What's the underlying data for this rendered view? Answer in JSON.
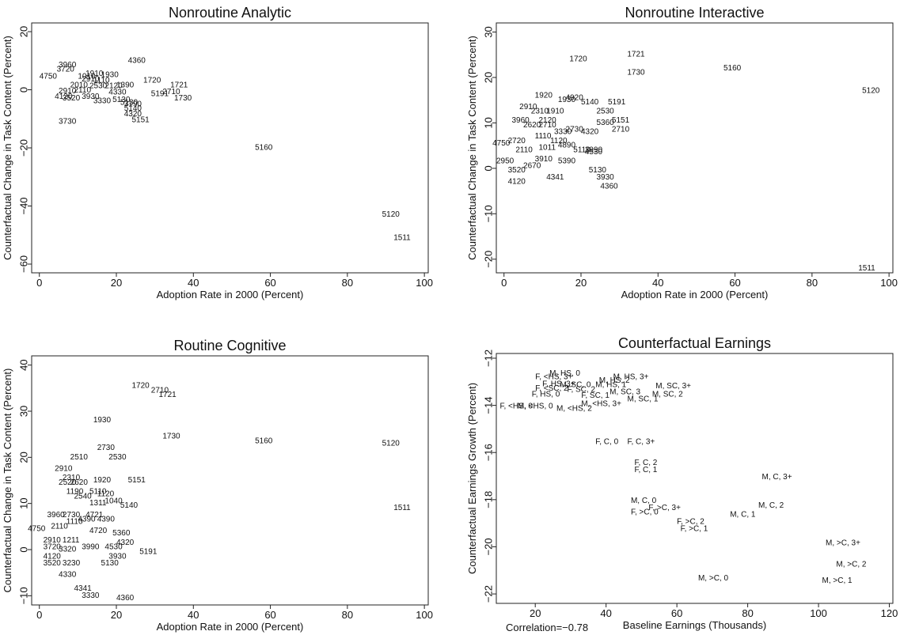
{
  "chart_data": [
    {
      "type": "scatter",
      "title": "Nonroutine Analytic",
      "xlabel": "Adoption Rate in 2000 (Percent)",
      "ylabel": "Counterfactual Change in Task Content (Percent)",
      "xlim": [
        -2,
        101
      ],
      "ylim": [
        -63,
        23
      ],
      "xticks": [
        0,
        20,
        40,
        60,
        80,
        100
      ],
      "yticks": [
        -60,
        -40,
        -20,
        0,
        20
      ],
      "grid": false,
      "points": [
        {
          "label": "4360",
          "x": 23,
          "y": 10
        },
        {
          "label": "3960",
          "x": 5,
          "y": 8.5
        },
        {
          "label": "3720",
          "x": 4.5,
          "y": 7
        },
        {
          "label": "4750",
          "x": 0,
          "y": 4.5
        },
        {
          "label": "1910",
          "x": 12,
          "y": 5.5
        },
        {
          "label": "1930",
          "x": 16,
          "y": 5
        },
        {
          "label": "1010",
          "x": 10,
          "y": 4.5
        },
        {
          "label": "2910",
          "x": 11,
          "y": 3.5
        },
        {
          "label": "1110",
          "x": 14,
          "y": 3.2
        },
        {
          "label": "2010",
          "x": 8,
          "y": 1.5
        },
        {
          "label": "2530",
          "x": 13,
          "y": 1.2
        },
        {
          "label": "2120",
          "x": 17,
          "y": 1.2
        },
        {
          "label": "1390",
          "x": 20,
          "y": 1.5
        },
        {
          "label": "1720",
          "x": 27,
          "y": 3.2
        },
        {
          "label": "1721",
          "x": 34,
          "y": 1.5
        },
        {
          "label": "2710",
          "x": 32,
          "y": -0.8
        },
        {
          "label": "5191",
          "x": 29,
          "y": -1.5
        },
        {
          "label": "1730",
          "x": 35,
          "y": -3
        },
        {
          "label": "2910",
          "x": 5,
          "y": -0.5
        },
        {
          "label": "2110",
          "x": 9,
          "y": -0.3
        },
        {
          "label": "4120",
          "x": 4,
          "y": -2.5
        },
        {
          "label": "3520",
          "x": 6,
          "y": -3
        },
        {
          "label": "3930",
          "x": 11,
          "y": -2.5
        },
        {
          "label": "4330",
          "x": 18,
          "y": -1
        },
        {
          "label": "3330",
          "x": 14,
          "y": -4
        },
        {
          "label": "5130",
          "x": 19,
          "y": -3.5
        },
        {
          "label": "5130",
          "x": 21,
          "y": -4.5
        },
        {
          "label": "3190",
          "x": 22,
          "y": -5
        },
        {
          "label": "5140",
          "x": 22,
          "y": -6.5
        },
        {
          "label": "4320",
          "x": 22,
          "y": -8.5
        },
        {
          "label": "5151",
          "x": 24,
          "y": -10.5
        },
        {
          "label": "3730",
          "x": 5,
          "y": -11
        },
        {
          "label": "5160",
          "x": 56,
          "y": -20
        },
        {
          "label": "5120",
          "x": 89,
          "y": -43
        },
        {
          "label": "1511",
          "x": 92,
          "y": -51
        }
      ]
    },
    {
      "type": "scatter",
      "title": "Nonroutine Interactive",
      "xlabel": "Adoption Rate in 2000 (Percent)",
      "ylabel": "Counterfactual Change in Task Content (Percent)",
      "xlim": [
        -2,
        101
      ],
      "ylim": [
        -23,
        32
      ],
      "xticks": [
        0,
        20,
        40,
        60,
        80,
        100
      ],
      "yticks": [
        -20,
        -10,
        0,
        10,
        20,
        30
      ],
      "grid": false,
      "points": [
        {
          "label": "1720",
          "x": 17,
          "y": 24
        },
        {
          "label": "1721",
          "x": 32,
          "y": 25
        },
        {
          "label": "1730",
          "x": 32,
          "y": 21
        },
        {
          "label": "5160",
          "x": 57,
          "y": 22
        },
        {
          "label": "5120",
          "x": 93,
          "y": 17
        },
        {
          "label": "1920",
          "x": 8,
          "y": 16
        },
        {
          "label": "1930",
          "x": 14,
          "y": 15
        },
        {
          "label": "4920",
          "x": 16,
          "y": 15.5
        },
        {
          "label": "5140",
          "x": 20,
          "y": 14.5
        },
        {
          "label": "5191",
          "x": 27,
          "y": 14.5
        },
        {
          "label": "2910",
          "x": 4,
          "y": 13.5
        },
        {
          "label": "2310",
          "x": 7,
          "y": 12.5
        },
        {
          "label": "1910",
          "x": 11,
          "y": 12.5
        },
        {
          "label": "2530",
          "x": 24,
          "y": 12.5
        },
        {
          "label": "3960",
          "x": 2,
          "y": 10.5
        },
        {
          "label": "2120",
          "x": 9,
          "y": 10.5
        },
        {
          "label": "5151",
          "x": 28,
          "y": 10.5
        },
        {
          "label": "2620",
          "x": 5,
          "y": 9.5
        },
        {
          "label": "2710",
          "x": 9,
          "y": 9.5
        },
        {
          "label": "5360",
          "x": 24,
          "y": 10
        },
        {
          "label": "3330",
          "x": 13,
          "y": 8
        },
        {
          "label": "2730",
          "x": 16,
          "y": 8.5
        },
        {
          "label": "4320",
          "x": 20,
          "y": 8
        },
        {
          "label": "2710",
          "x": 28,
          "y": 8.5
        },
        {
          "label": "4750",
          "x": -3,
          "y": 5.5
        },
        {
          "label": "2720",
          "x": 1,
          "y": 6
        },
        {
          "label": "1110",
          "x": 8,
          "y": 7
        },
        {
          "label": "1120",
          "x": 12,
          "y": 6
        },
        {
          "label": "2110",
          "x": 3,
          "y": 4
        },
        {
          "label": "1011",
          "x": 9,
          "y": 4.5
        },
        {
          "label": "4890",
          "x": 14,
          "y": 5
        },
        {
          "label": "5110",
          "x": 18,
          "y": 4
        },
        {
          "label": "3990",
          "x": 21,
          "y": 4
        },
        {
          "label": "4530",
          "x": 21,
          "y": 3.5
        },
        {
          "label": "2950",
          "x": -2,
          "y": 1.5
        },
        {
          "label": "3910",
          "x": 8,
          "y": 2
        },
        {
          "label": "5390",
          "x": 14,
          "y": 1.5
        },
        {
          "label": "3520",
          "x": 1,
          "y": -0.5
        },
        {
          "label": "2670",
          "x": 5,
          "y": 0.5
        },
        {
          "label": "5130",
          "x": 22,
          "y": -0.5
        },
        {
          "label": "3930",
          "x": 24,
          "y": -2
        },
        {
          "label": "4120",
          "x": 1,
          "y": -3
        },
        {
          "label": "4341",
          "x": 11,
          "y": -2
        },
        {
          "label": "4360",
          "x": 25,
          "y": -4
        },
        {
          "label": "1511",
          "x": 92,
          "y": -22
        }
      ]
    },
    {
      "type": "scatter",
      "title": "Routine Cognitive",
      "xlabel": "Adoption Rate in 2000 (Percent)",
      "ylabel": "Counterfactual Change in Task Content (Percent)",
      "xlim": [
        -2,
        101
      ],
      "ylim": [
        -12,
        42
      ],
      "xticks": [
        0,
        20,
        40,
        60,
        80,
        100
      ],
      "yticks": [
        -10,
        0,
        10,
        20,
        30,
        40
      ],
      "grid": false,
      "points": [
        {
          "label": "1720",
          "x": 24,
          "y": 35.5
        },
        {
          "label": "2710",
          "x": 29,
          "y": 34.5
        },
        {
          "label": "1721",
          "x": 31,
          "y": 33.5
        },
        {
          "label": "1930",
          "x": 14,
          "y": 28
        },
        {
          "label": "1730",
          "x": 32,
          "y": 24.5
        },
        {
          "label": "5160",
          "x": 56,
          "y": 23.5
        },
        {
          "label": "5120",
          "x": 89,
          "y": 23
        },
        {
          "label": "2730",
          "x": 15,
          "y": 22
        },
        {
          "label": "2510",
          "x": 8,
          "y": 20
        },
        {
          "label": "2530",
          "x": 18,
          "y": 20
        },
        {
          "label": "2910",
          "x": 4,
          "y": 17.5
        },
        {
          "label": "2310",
          "x": 6,
          "y": 15.5
        },
        {
          "label": "2520",
          "x": 5,
          "y": 14.5
        },
        {
          "label": "2620",
          "x": 8,
          "y": 14.5
        },
        {
          "label": "1920",
          "x": 14,
          "y": 15
        },
        {
          "label": "5151",
          "x": 23,
          "y": 15
        },
        {
          "label": "1190",
          "x": 7,
          "y": 12.5
        },
        {
          "label": "5110",
          "x": 13,
          "y": 12.5
        },
        {
          "label": "2540",
          "x": 9,
          "y": 11.5
        },
        {
          "label": "1120",
          "x": 15,
          "y": 12
        },
        {
          "label": "1311",
          "x": 13,
          "y": 10
        },
        {
          "label": "1040",
          "x": 17,
          "y": 10.5
        },
        {
          "label": "5140",
          "x": 21,
          "y": 9.5
        },
        {
          "label": "1511",
          "x": 92,
          "y": 9
        },
        {
          "label": "3960",
          "x": 2,
          "y": 7.5
        },
        {
          "label": "2730",
          "x": 6,
          "y": 7.5
        },
        {
          "label": "4721",
          "x": 12,
          "y": 7.5
        },
        {
          "label": "1110",
          "x": 7,
          "y": 6
        },
        {
          "label": "4390",
          "x": 10,
          "y": 6.5
        },
        {
          "label": "4390",
          "x": 15,
          "y": 6.5
        },
        {
          "label": "4750",
          "x": -3,
          "y": 4.5
        },
        {
          "label": "2110",
          "x": 3,
          "y": 5
        },
        {
          "label": "4720",
          "x": 13,
          "y": 4
        },
        {
          "label": "5360",
          "x": 19,
          "y": 3.5
        },
        {
          "label": "2910",
          "x": 1,
          "y": 2
        },
        {
          "label": "1211",
          "x": 6,
          "y": 2
        },
        {
          "label": "4320",
          "x": 20,
          "y": 1.5
        },
        {
          "label": "3720",
          "x": 1,
          "y": 0.5
        },
        {
          "label": "3320",
          "x": 5,
          "y": 0
        },
        {
          "label": "3990",
          "x": 11,
          "y": 0.5
        },
        {
          "label": "4530",
          "x": 17,
          "y": 0.5
        },
        {
          "label": "5191",
          "x": 26,
          "y": -0.5
        },
        {
          "label": "4120",
          "x": 1,
          "y": -1.5
        },
        {
          "label": "3930",
          "x": 18,
          "y": -1.5
        },
        {
          "label": "3520",
          "x": 1,
          "y": -3
        },
        {
          "label": "3230",
          "x": 6,
          "y": -3
        },
        {
          "label": "5130",
          "x": 16,
          "y": -3
        },
        {
          "label": "4330",
          "x": 5,
          "y": -5.5
        },
        {
          "label": "4341",
          "x": 9,
          "y": -8.5
        },
        {
          "label": "3330",
          "x": 11,
          "y": -10
        },
        {
          "label": "4360",
          "x": 20,
          "y": -10.5
        }
      ]
    },
    {
      "type": "scatter",
      "title": "Counterfactual Earnings",
      "xlabel": "Baseline Earnings (Thousands)",
      "ylabel": "Counterfactual Earnings Growth (Percent)",
      "xlim": [
        9,
        121
      ],
      "ylim": [
        -22.4,
        -11.8
      ],
      "xticks": [
        20,
        40,
        60,
        80,
        100,
        120
      ],
      "yticks": [
        -22,
        -20,
        -18,
        -16,
        -14,
        -12
      ],
      "grid": false,
      "footnote": "Correlation=−0.78",
      "points": [
        {
          "label": "M, HS, 0",
          "x": 24,
          "y": -12.65
        },
        {
          "label": "F, <HS, 3+",
          "x": 20,
          "y": -12.8
        },
        {
          "label": "M, HS, 3+",
          "x": 42,
          "y": -12.8
        },
        {
          "label": "M, HS, 2",
          "x": 38,
          "y": -12.95
        },
        {
          "label": "F, HS, 3+",
          "x": 22,
          "y": -13.1
        },
        {
          "label": "M, SC, 0",
          "x": 27,
          "y": -13.15
        },
        {
          "label": "M, HS, 1",
          "x": 37,
          "y": -13.15
        },
        {
          "label": "M, SC, 3+",
          "x": 54,
          "y": -13.2
        },
        {
          "label": "F, <SC, 2",
          "x": 20,
          "y": -13.3
        },
        {
          "label": "F, SC, 2",
          "x": 29,
          "y": -13.35
        },
        {
          "label": "M, SC, 3",
          "x": 41,
          "y": -13.45
        },
        {
          "label": "F, HS, 0",
          "x": 19,
          "y": -13.55
        },
        {
          "label": "F, SC, 1",
          "x": 33,
          "y": -13.6
        },
        {
          "label": "M, SC, 2",
          "x": 53,
          "y": -13.55
        },
        {
          "label": "M, SC, 1",
          "x": 46,
          "y": -13.75
        },
        {
          "label": "F, <HS, 0",
          "x": 10,
          "y": -14.05
        },
        {
          "label": "M, <HS, 0",
          "x": 15,
          "y": -14.05
        },
        {
          "label": "M, <HS, 3+",
          "x": 33,
          "y": -13.95
        },
        {
          "label": "M, <HS, 2",
          "x": 26,
          "y": -14.15
        },
        {
          "label": "F, C, 0",
          "x": 37,
          "y": -15.55
        },
        {
          "label": "F, C, 3+",
          "x": 46,
          "y": -15.55
        },
        {
          "label": "F, C, 2",
          "x": 48,
          "y": -16.45
        },
        {
          "label": "F, C, 1",
          "x": 48,
          "y": -16.75
        },
        {
          "label": "M, C, 3+",
          "x": 84,
          "y": -17.05
        },
        {
          "label": "M, C, 0",
          "x": 47,
          "y": -18.05
        },
        {
          "label": "M, C, 2",
          "x": 83,
          "y": -18.25
        },
        {
          "label": "F, >C, 3+",
          "x": 52,
          "y": -18.35
        },
        {
          "label": "F, >C, 0",
          "x": 47,
          "y": -18.55
        },
        {
          "label": "M, C, 1",
          "x": 75,
          "y": -18.65
        },
        {
          "label": "F, >C, 2",
          "x": 60,
          "y": -18.95
        },
        {
          "label": "F, >C, 1",
          "x": 61,
          "y": -19.25
        },
        {
          "label": "M, >C, 3+",
          "x": 102,
          "y": -19.85
        },
        {
          "label": "M, >C, 2",
          "x": 105,
          "y": -20.75
        },
        {
          "label": "M, >C, 0",
          "x": 66,
          "y": -21.35
        },
        {
          "label": "M, >C, 1",
          "x": 101,
          "y": -21.45
        }
      ]
    }
  ]
}
